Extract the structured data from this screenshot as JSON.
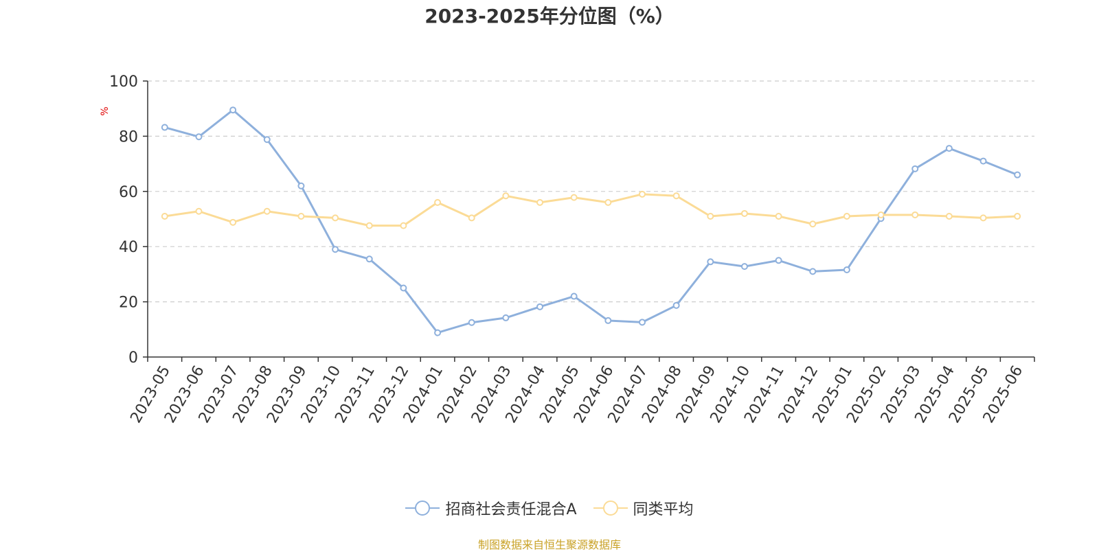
{
  "chart_data": {
    "type": "line",
    "title": "2023-2025年分位图（%）",
    "ylabel": "%",
    "xlabel": "",
    "ylim": [
      0,
      100
    ],
    "yticks": [
      "0",
      "20",
      "40",
      "60",
      "80",
      "100"
    ],
    "grid": true,
    "legend_position": "bottom",
    "categories": [
      "2023-05",
      "2023-06",
      "2023-07",
      "2023-08",
      "2023-09",
      "2023-10",
      "2023-11",
      "2023-12",
      "2024-01",
      "2024-02",
      "2024-03",
      "2024-04",
      "2024-05",
      "2024-06",
      "2024-07",
      "2024-08",
      "2024-09",
      "2024-10",
      "2024-11",
      "2024-12",
      "2025-01",
      "2025-02",
      "2025-03",
      "2025-04",
      "2025-05",
      "2025-06"
    ],
    "series": [
      {
        "name": "招商社会责任混合A",
        "color": "#8eb0dc",
        "values": [
          83.2,
          79.8,
          89.5,
          78.8,
          62.0,
          39.0,
          35.5,
          25.0,
          8.8,
          12.5,
          14.2,
          18.2,
          22.0,
          13.2,
          12.6,
          18.7,
          34.5,
          32.8,
          35.0,
          31.0,
          31.6,
          50.2,
          68.2,
          75.6,
          71.0,
          66.0
        ]
      },
      {
        "name": "同类平均",
        "color": "#fbdb96",
        "values": [
          51.0,
          52.8,
          48.8,
          52.8,
          51.0,
          50.4,
          47.6,
          47.6,
          56.0,
          50.4,
          58.4,
          56.0,
          57.8,
          56.0,
          59.0,
          58.4,
          51.0,
          52.0,
          51.0,
          48.2,
          51.0,
          51.5,
          51.5,
          51.0,
          50.4,
          51.0
        ]
      }
    ]
  },
  "source_note": "制图数据来自恒生聚源数据库"
}
